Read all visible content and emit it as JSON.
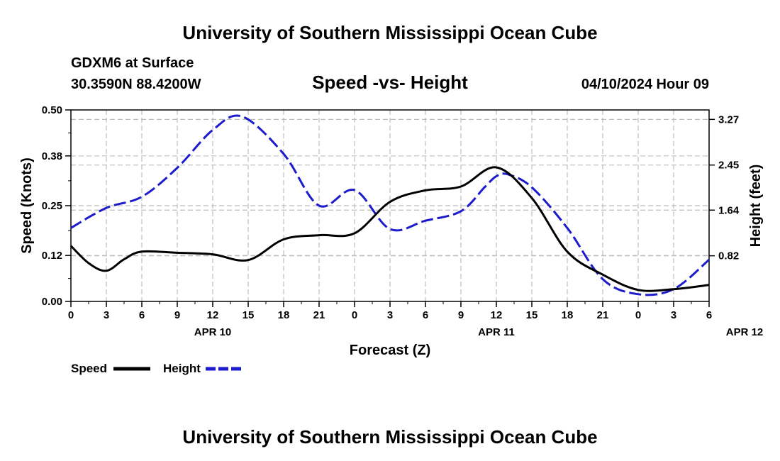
{
  "header": {
    "title": "University of Southern Mississippi Ocean Cube",
    "station": "GDXM6 at Surface",
    "location": "30.3590N  88.4200W",
    "date": "04/10/2024 Hour 09",
    "footer_title": "University of Southern Mississippi Ocean Cube"
  },
  "colors": {
    "speed": "#000000",
    "height": "#1c1ccc",
    "grid": "#bdbdbd"
  },
  "chart_data": {
    "type": "line",
    "title": "Speed -vs- Height",
    "xlabel": "Forecast (Z)",
    "ylabel": "Speed (Knots)",
    "y2label": "Height (feet)",
    "x_tick_labels": [
      "0",
      "3",
      "6",
      "9",
      "12",
      "15",
      "18",
      "21",
      "0",
      "3",
      "6",
      "9",
      "12",
      "15",
      "18",
      "21",
      "0",
      "3",
      "6"
    ],
    "date_labels": [
      {
        "label": "APR 10",
        "x": 12
      },
      {
        "label": "APR 11",
        "x": 36
      },
      {
        "label": "APR 12",
        "x": 57
      }
    ],
    "xlim": [
      0,
      54
    ],
    "ylim": [
      0,
      0.5
    ],
    "y_ticks": [
      0.0,
      0.12,
      0.25,
      0.38,
      0.5
    ],
    "y_tick_labels": [
      "0.00",
      "0.12",
      "0.25",
      "0.38",
      "0.50"
    ],
    "y2lim": [
      0,
      3.44
    ],
    "y2_ticks": [
      0.82,
      1.64,
      2.45,
      3.27
    ],
    "y2_tick_labels": [
      "0.82",
      "1.64",
      "2.45",
      "3.27"
    ],
    "series": [
      {
        "name": "Speed",
        "axis": "left",
        "x": [
          0,
          1.5,
          3,
          4.5,
          6,
          9,
          12,
          15,
          18,
          21,
          24,
          27,
          30,
          33,
          36,
          39,
          42,
          45,
          48,
          51,
          54
        ],
        "values": [
          0.145,
          0.1,
          0.08,
          0.11,
          0.13,
          0.127,
          0.123,
          0.108,
          0.162,
          0.173,
          0.178,
          0.26,
          0.29,
          0.3,
          0.35,
          0.27,
          0.13,
          0.07,
          0.03,
          0.032,
          0.043
        ]
      },
      {
        "name": "Height",
        "axis": "right",
        "x": [
          0,
          3,
          6,
          9,
          12,
          14.5,
          18,
          21,
          24,
          27,
          30,
          33,
          35,
          36,
          37,
          39,
          42,
          45,
          48,
          51,
          54
        ],
        "values": [
          1.32,
          1.68,
          1.88,
          2.4,
          3.08,
          3.32,
          2.65,
          1.72,
          2.0,
          1.3,
          1.45,
          1.62,
          2.05,
          2.25,
          2.28,
          2.05,
          1.32,
          0.4,
          0.13,
          0.22,
          0.75
        ]
      }
    ],
    "legend": [
      {
        "label": "Speed"
      },
      {
        "label": "Height"
      }
    ]
  }
}
